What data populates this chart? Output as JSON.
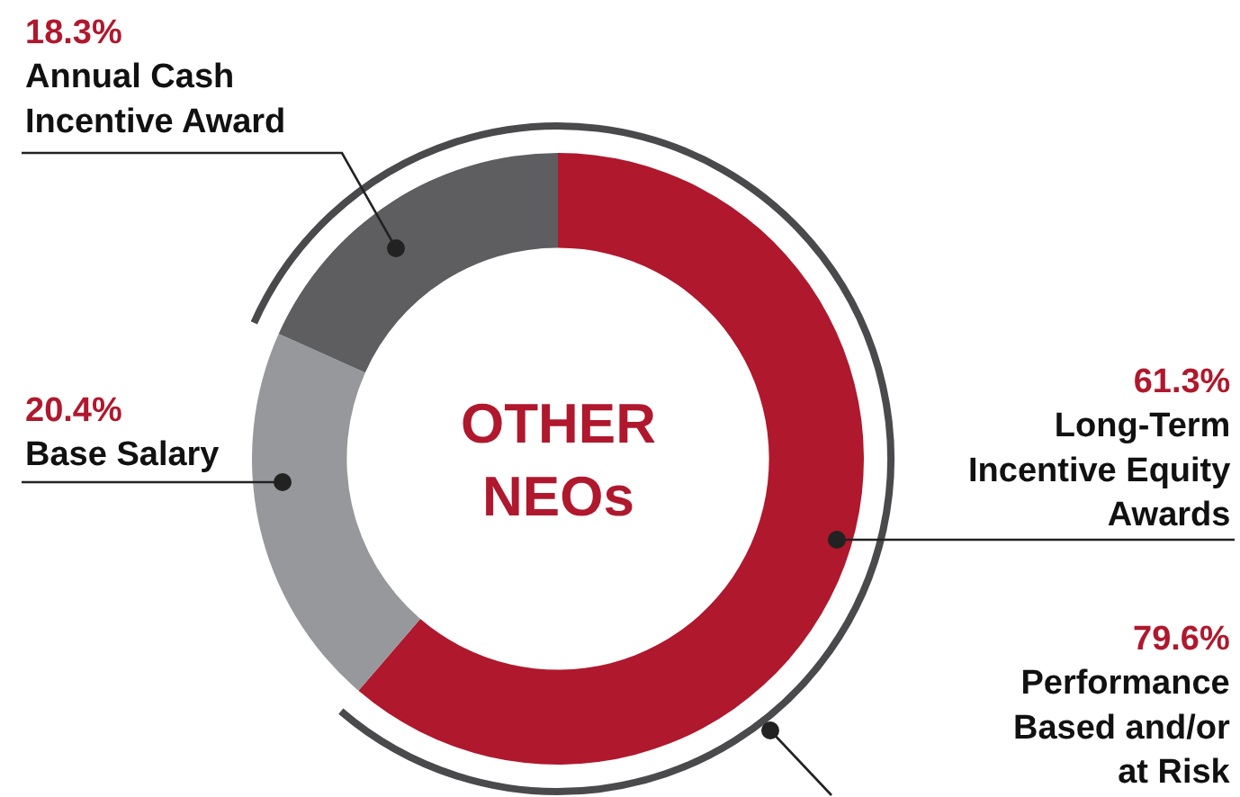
{
  "chart_data": {
    "type": "donut",
    "title": "OTHER NEOs",
    "categories": [
      "Long-Term Incentive Equity Awards",
      "Base Salary",
      "Annual Cash Incentive Award"
    ],
    "values": [
      61.3,
      20.4,
      18.3
    ],
    "colors": [
      "#b0182d",
      "#97989b",
      "#5e5e60"
    ],
    "value_labels": [
      "61.3%",
      "20.4%",
      "18.3%"
    ],
    "annotations": [
      "79.6% Performance Based and/or at Risk"
    ],
    "legend": false
  }
}
